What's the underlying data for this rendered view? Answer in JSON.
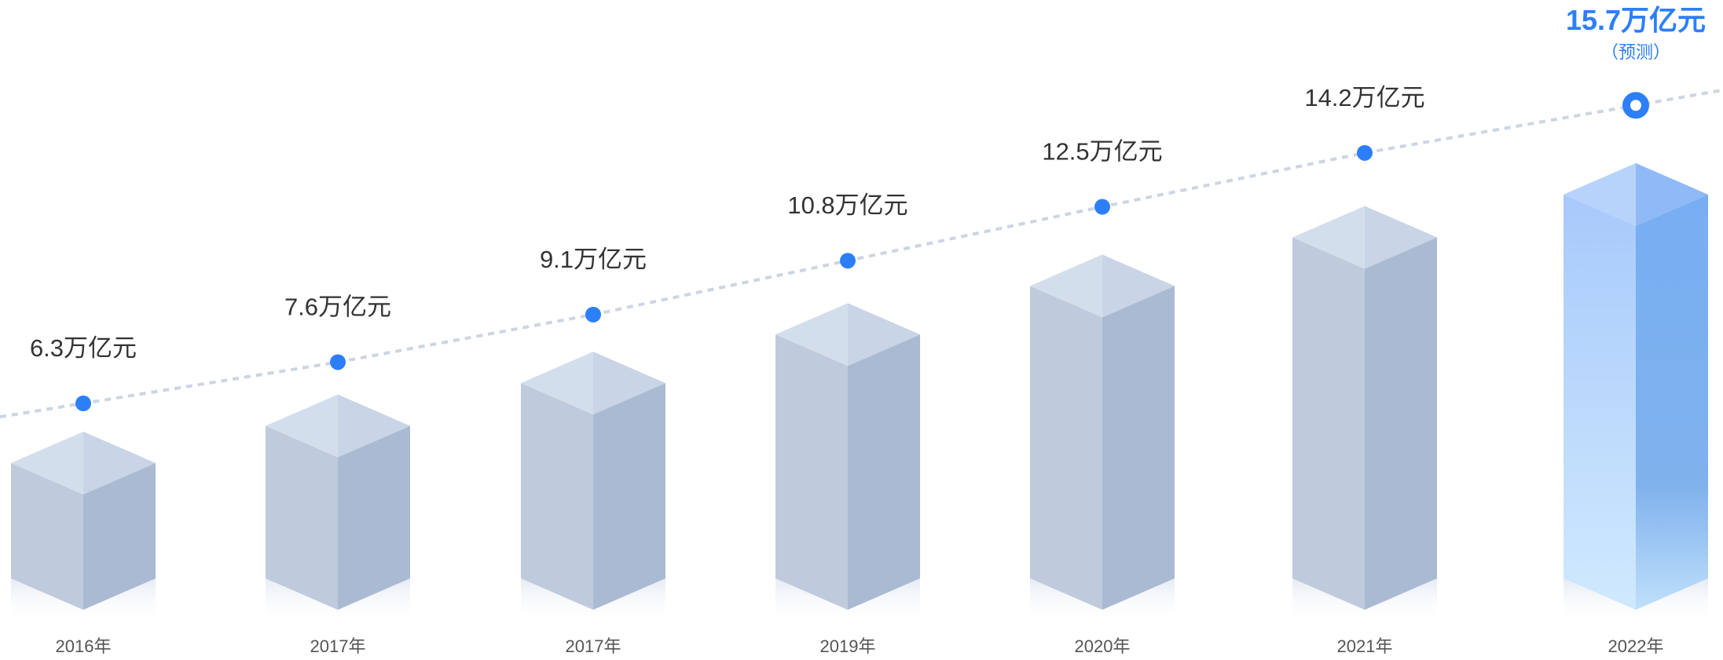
{
  "chart_data": {
    "type": "bar",
    "title": "",
    "xlabel": "",
    "ylabel": "",
    "grid": false,
    "categories": [
      "2016年",
      "2017年",
      "2017年",
      "2019年",
      "2020年",
      "2021年",
      "2022年"
    ],
    "values": [
      6.3,
      7.6,
      9.1,
      10.8,
      12.5,
      14.2,
      15.7
    ],
    "value_labels": [
      "6.3万亿元",
      "7.6万亿元",
      "9.1万亿元",
      "10.8万亿元",
      "12.5万亿元",
      "14.2万亿元",
      "15.7万亿元"
    ],
    "forecast_index": 6,
    "forecast_note": "（预测）",
    "overlay": "dashed trend line with points",
    "colors": {
      "bar_left": "#bfcadc",
      "bar_right": "#aabad3",
      "bar_top_left": "#d3deec",
      "bar_top_right": "#c9d5e6",
      "forecast_left": "#a8c9fb",
      "forecast_right": "#77aef3",
      "forecast_top_left": "#b7d3fc",
      "forecast_top_right": "#8fbaf5",
      "point": "#2d7ff9",
      "line": "#cdd5e2",
      "label": "#333333",
      "year": "#555555"
    }
  }
}
